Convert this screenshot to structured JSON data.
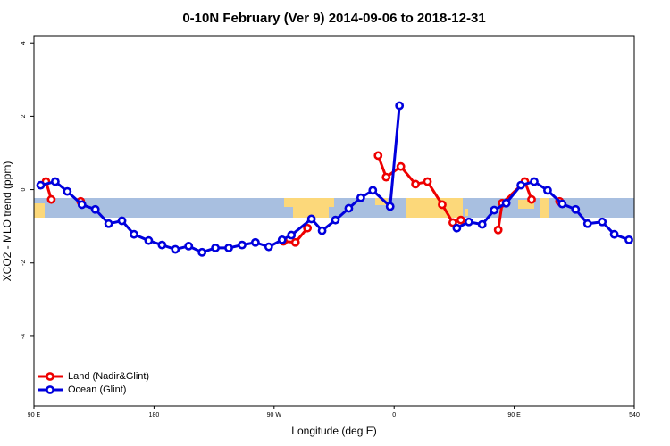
{
  "chart_data": {
    "type": "line",
    "title": "0-10N February (Ver 9)   2014-09-06 to 2018-12-31",
    "x_label": "Longitude (deg E)",
    "y_label": "XCO2 - MLO trend (ppm)",
    "xlim": [
      90,
      540
    ],
    "ylim": [
      -5.9,
      4.2
    ],
    "xticks": [
      {
        "value": 90,
        "label": "90 E"
      },
      180,
      {
        "value": 270,
        "label": "90 W"
      },
      {
        "value": 360,
        "label": "0"
      },
      {
        "value": 450,
        "label": "90 E"
      },
      540
    ],
    "yticks": [
      -4,
      -2,
      0,
      2,
      4
    ],
    "grid": false,
    "legend": "bottom-left",
    "series": [
      {
        "name": "Land (Nadir&Glint)",
        "color": "#ee0000",
        "x": [
          99,
          103,
          null,
          125,
          null,
          277,
          286,
          295,
          null,
          348,
          354,
          365,
          376,
          385,
          396,
          404,
          410,
          null,
          438,
          441,
          458,
          463,
          null,
          484
        ],
        "values": [
          0.22,
          -0.27,
          null,
          -0.32,
          null,
          -1.41,
          -1.44,
          -1.05,
          null,
          0.93,
          0.34,
          0.63,
          0.15,
          0.22,
          -0.41,
          -0.9,
          -0.83,
          null,
          -1.1,
          -0.37,
          0.22,
          -0.27,
          null,
          -0.32
        ]
      },
      {
        "name": "Ocean (Glint)",
        "color": "#0000dd",
        "x": [
          95,
          106,
          115,
          126,
          136,
          146,
          156,
          165,
          176,
          186,
          196,
          206,
          216,
          226,
          236,
          246,
          256,
          266,
          276,
          283,
          298,
          306,
          316,
          326,
          335,
          344,
          357,
          364,
          null,
          407,
          416,
          426,
          435,
          444,
          455,
          465,
          475,
          486,
          496,
          505,
          516,
          525,
          536
        ],
        "values": [
          0.12,
          0.22,
          -0.05,
          -0.41,
          -0.54,
          -0.93,
          -0.85,
          -1.22,
          -1.39,
          -1.51,
          -1.63,
          -1.54,
          -1.71,
          -1.59,
          -1.59,
          -1.51,
          -1.44,
          -1.56,
          -1.37,
          -1.24,
          -0.8,
          -1.12,
          -0.83,
          -0.51,
          -0.22,
          -0.02,
          -0.46,
          2.29,
          null,
          -1.05,
          -0.88,
          -0.95,
          -0.56,
          -0.37,
          0.12,
          0.22,
          -0.02,
          -0.39,
          -0.54,
          -0.93,
          -0.88,
          -1.22,
          -1.37
        ]
      }
    ]
  }
}
